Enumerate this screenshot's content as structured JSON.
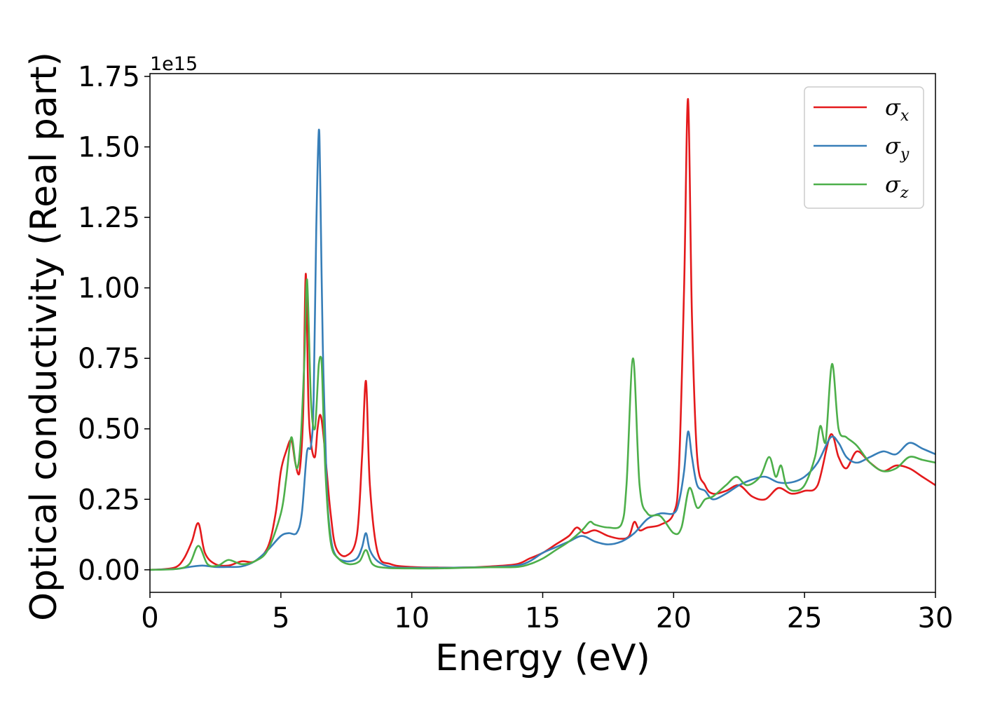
{
  "chart_data": {
    "type": "line",
    "xlabel": "Energy (eV)",
    "ylabel": "Optical conductivity (Real part)",
    "y_offset_label": "1e15",
    "xlim": [
      0,
      30
    ],
    "ylim": [
      -0.08,
      1.76
    ],
    "xticks": [
      0,
      5,
      10,
      15,
      20,
      25,
      30
    ],
    "xtick_labels": [
      "0",
      "5",
      "10",
      "15",
      "20",
      "25",
      "30"
    ],
    "yticks": [
      0.0,
      0.25,
      0.5,
      0.75,
      1.0,
      1.25,
      1.5,
      1.75
    ],
    "ytick_labels": [
      "0.00",
      "0.25",
      "0.50",
      "0.75",
      "1.00",
      "1.25",
      "1.50",
      "1.75"
    ],
    "grid": false,
    "legend_position": "top-right",
    "series": [
      {
        "name": "σ",
        "subscript": "x",
        "color": "#e41a1c",
        "x": [
          0,
          0.5,
          1.0,
          1.3,
          1.6,
          1.85,
          2.1,
          2.5,
          3.0,
          3.5,
          4.0,
          4.5,
          4.8,
          5.0,
          5.2,
          5.4,
          5.55,
          5.7,
          5.85,
          5.95,
          6.05,
          6.15,
          6.3,
          6.4,
          6.5,
          6.6,
          6.75,
          6.9,
          7.1,
          7.5,
          7.9,
          8.1,
          8.25,
          8.4,
          8.7,
          9.2,
          10,
          11,
          12,
          13,
          14,
          14.5,
          15,
          15.5,
          16,
          16.3,
          16.6,
          17,
          17.5,
          18,
          18.3,
          18.5,
          18.7,
          19,
          19.5,
          20,
          20.2,
          20.4,
          20.55,
          20.7,
          20.9,
          21.2,
          21.5,
          22,
          22.5,
          23,
          23.5,
          24,
          24.5,
          25,
          25.5,
          26,
          26.3,
          26.6,
          27,
          27.5,
          28,
          28.5,
          29,
          29.5,
          30
        ],
        "values": [
          0.0,
          0.002,
          0.01,
          0.04,
          0.1,
          0.165,
          0.06,
          0.02,
          0.015,
          0.03,
          0.03,
          0.08,
          0.2,
          0.35,
          0.42,
          0.46,
          0.38,
          0.34,
          0.55,
          1.05,
          0.6,
          0.45,
          0.4,
          0.5,
          0.55,
          0.5,
          0.35,
          0.2,
          0.08,
          0.05,
          0.12,
          0.4,
          0.67,
          0.3,
          0.06,
          0.02,
          0.01,
          0.008,
          0.008,
          0.012,
          0.02,
          0.04,
          0.06,
          0.09,
          0.12,
          0.15,
          0.13,
          0.14,
          0.12,
          0.11,
          0.12,
          0.17,
          0.14,
          0.15,
          0.16,
          0.2,
          0.35,
          1.0,
          1.67,
          0.9,
          0.4,
          0.3,
          0.27,
          0.28,
          0.3,
          0.26,
          0.25,
          0.29,
          0.27,
          0.28,
          0.3,
          0.48,
          0.4,
          0.36,
          0.42,
          0.38,
          0.35,
          0.37,
          0.36,
          0.33,
          0.3
        ]
      },
      {
        "name": "σ",
        "subscript": "y",
        "color": "#377eb8",
        "x": [
          0,
          1.0,
          1.5,
          2.0,
          2.5,
          3.0,
          3.5,
          4.0,
          4.5,
          5.0,
          5.3,
          5.6,
          5.8,
          6.0,
          6.15,
          6.25,
          6.35,
          6.45,
          6.5,
          6.6,
          6.75,
          6.9,
          7.1,
          7.5,
          7.9,
          8.1,
          8.25,
          8.4,
          8.7,
          9.2,
          10,
          11,
          12,
          13,
          14,
          14.5,
          15,
          15.5,
          16,
          16.5,
          17,
          17.5,
          18,
          18.5,
          19,
          19.5,
          20,
          20.2,
          20.4,
          20.55,
          20.7,
          20.9,
          21.2,
          21.5,
          22,
          22.5,
          23,
          23.5,
          24,
          24.5,
          25,
          25.5,
          26,
          26.3,
          26.6,
          27,
          27.5,
          28,
          28.5,
          29,
          29.5,
          30
        ],
        "values": [
          0.0,
          0.003,
          0.01,
          0.015,
          0.01,
          0.01,
          0.012,
          0.03,
          0.07,
          0.12,
          0.13,
          0.13,
          0.2,
          0.42,
          0.44,
          0.6,
          1.2,
          1.56,
          1.4,
          0.8,
          0.3,
          0.12,
          0.05,
          0.03,
          0.04,
          0.08,
          0.13,
          0.07,
          0.03,
          0.01,
          0.007,
          0.007,
          0.008,
          0.01,
          0.015,
          0.03,
          0.06,
          0.08,
          0.1,
          0.12,
          0.1,
          0.09,
          0.1,
          0.13,
          0.18,
          0.2,
          0.2,
          0.24,
          0.35,
          0.49,
          0.4,
          0.3,
          0.28,
          0.25,
          0.27,
          0.3,
          0.32,
          0.33,
          0.31,
          0.31,
          0.33,
          0.38,
          0.47,
          0.45,
          0.4,
          0.38,
          0.4,
          0.42,
          0.41,
          0.45,
          0.43,
          0.41
        ]
      },
      {
        "name": "σ",
        "subscript": "z",
        "color": "#4daf4a",
        "x": [
          0,
          1.0,
          1.5,
          1.85,
          2.2,
          2.6,
          3.0,
          3.5,
          4.0,
          4.5,
          5.0,
          5.2,
          5.4,
          5.6,
          5.75,
          5.9,
          6.0,
          6.15,
          6.3,
          6.45,
          6.55,
          6.7,
          6.9,
          7.2,
          7.6,
          8.0,
          8.25,
          8.5,
          9.0,
          10,
          11,
          12,
          13,
          14,
          14.5,
          15,
          15.5,
          16,
          16.5,
          16.8,
          17,
          17.5,
          18,
          18.2,
          18.45,
          18.7,
          19,
          19.5,
          20,
          20.3,
          20.6,
          20.9,
          21.2,
          21.5,
          22,
          22.4,
          22.8,
          23.3,
          23.65,
          23.9,
          24.1,
          24.3,
          24.6,
          25,
          25.4,
          25.6,
          25.8,
          26.05,
          26.3,
          26.6,
          27,
          27.5,
          28,
          28.5,
          29,
          29.5,
          30
        ],
        "values": [
          0.0,
          0.003,
          0.02,
          0.085,
          0.02,
          0.015,
          0.035,
          0.02,
          0.03,
          0.07,
          0.2,
          0.32,
          0.47,
          0.36,
          0.45,
          0.75,
          1.03,
          0.6,
          0.5,
          0.73,
          0.75,
          0.35,
          0.1,
          0.04,
          0.02,
          0.03,
          0.07,
          0.02,
          0.007,
          0.005,
          0.005,
          0.007,
          0.009,
          0.01,
          0.02,
          0.04,
          0.07,
          0.1,
          0.14,
          0.17,
          0.16,
          0.15,
          0.16,
          0.3,
          0.75,
          0.3,
          0.2,
          0.19,
          0.13,
          0.15,
          0.29,
          0.22,
          0.25,
          0.26,
          0.3,
          0.33,
          0.3,
          0.33,
          0.4,
          0.33,
          0.37,
          0.3,
          0.28,
          0.3,
          0.4,
          0.51,
          0.45,
          0.73,
          0.5,
          0.47,
          0.44,
          0.38,
          0.35,
          0.36,
          0.4,
          0.39,
          0.38
        ]
      }
    ]
  }
}
